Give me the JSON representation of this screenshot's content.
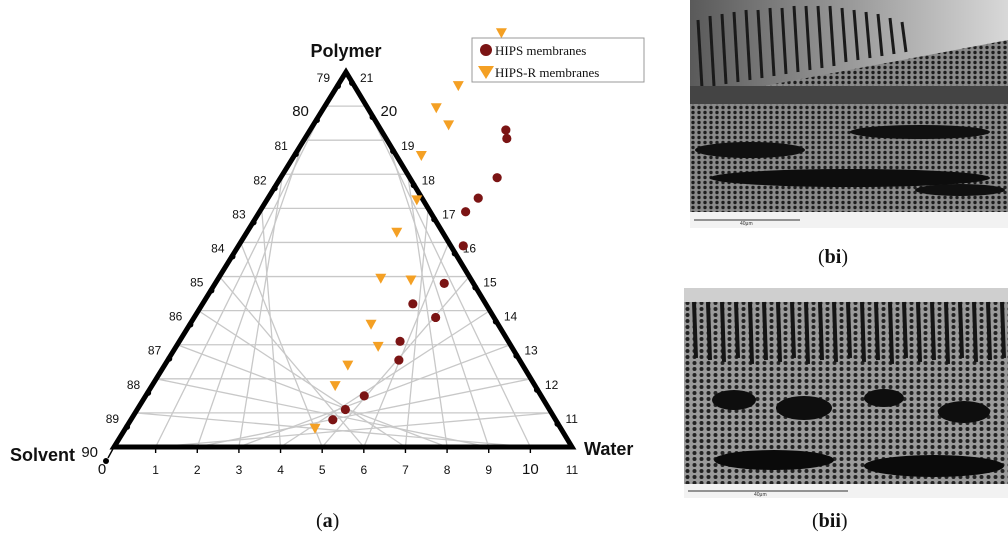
{
  "chart_data": {
    "type": "scatter",
    "subtype": "ternary",
    "vertices": {
      "top": "Polymer",
      "left": "Solvent",
      "right": "Water"
    },
    "ticks": {
      "left_edge": [
        "79",
        "80",
        "81",
        "82",
        "83",
        "84",
        "85",
        "86",
        "87",
        "88",
        "89",
        "90"
      ],
      "right_edge": [
        "21",
        "20",
        "19",
        "18",
        "17",
        "16",
        "15",
        "14",
        "13",
        "12",
        "11"
      ],
      "bottom_edge": [
        "0",
        "1",
        "2",
        "3",
        "4",
        "5",
        "6",
        "7",
        "8",
        "9",
        "10",
        "11"
      ]
    },
    "legend": [
      {
        "name": "HIPS membranes",
        "marker": "circle",
        "color": "#7b1414"
      },
      {
        "name": "HIPS-R membranes",
        "marker": "triangle-down",
        "color": "#f4a024"
      }
    ],
    "series": [
      {
        "name": "HIPS membranes",
        "points": [
          {
            "water": 4.85,
            "polymer": 0.8
          },
          {
            "water": 5.0,
            "polymer": 1.1
          },
          {
            "water": 5.25,
            "polymer": 1.5
          },
          {
            "water": 5.55,
            "polymer": 2.55
          },
          {
            "water": 5.3,
            "polymer": 3.1
          },
          {
            "water": 5.8,
            "polymer": 3.8
          },
          {
            "water": 5.05,
            "polymer": 4.2
          },
          {
            "water": 5.5,
            "polymer": 4.8
          },
          {
            "water": 5.4,
            "polymer": 5.9
          },
          {
            "water": 4.95,
            "polymer": 6.9
          },
          {
            "water": 5.05,
            "polymer": 7.3
          },
          {
            "water": 5.2,
            "polymer": 7.9
          },
          {
            "water": 4.85,
            "polymer": 9.05
          },
          {
            "water": 4.7,
            "polymer": 9.3
          },
          {
            "water": 4.6,
            "polymer": 10.9
          },
          {
            "water": 4.55,
            "polymer": 11.3
          },
          {
            "water": 4.45,
            "polymer": 11.45
          }
        ]
      },
      {
        "name": "HIPS-R membranes",
        "points": [
          {
            "water": 4.55,
            "polymer": 0.55
          },
          {
            "water": 4.4,
            "polymer": 1.8
          },
          {
            "water": 4.4,
            "polymer": 2.4
          },
          {
            "water": 4.85,
            "polymer": 2.95
          },
          {
            "water": 4.35,
            "polymer": 3.6
          },
          {
            "water": 3.9,
            "polymer": 4.95
          },
          {
            "water": 4.65,
            "polymer": 4.9
          },
          {
            "water": 3.6,
            "polymer": 6.3
          },
          {
            "water": 3.6,
            "polymer": 7.25
          },
          {
            "water": 3.05,
            "polymer": 8.55
          },
          {
            "water": 3.25,
            "polymer": 9.45
          },
          {
            "water": 2.7,
            "polymer": 9.95
          },
          {
            "water": 2.9,
            "polymer": 10.6
          },
          {
            "water": 3.15,
            "polymer": 12.15
          }
        ]
      }
    ]
  },
  "panels": {
    "a_label": "a",
    "bi_label": "bi",
    "bii_label": "bii",
    "bi_scalebar": "40μm",
    "bii_scalebar": "40μm"
  }
}
